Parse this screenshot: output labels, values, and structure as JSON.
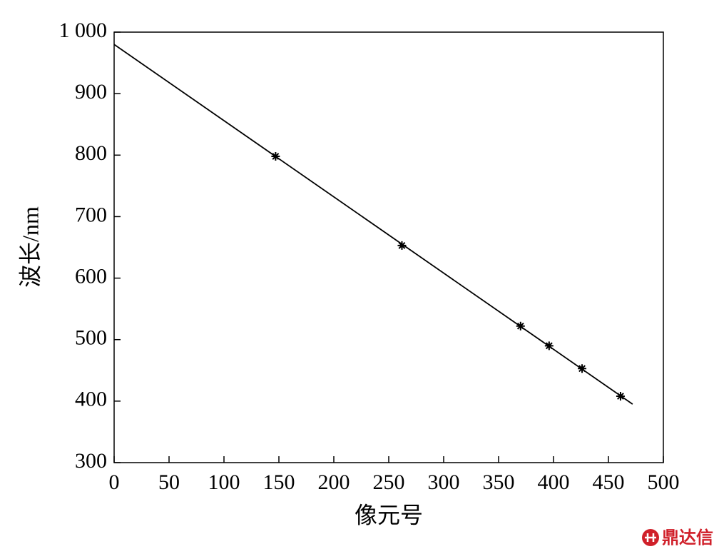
{
  "chart_data": {
    "type": "line",
    "xlabel": "像元号",
    "ylabel": "波长/nm",
    "xlim": [
      0,
      500
    ],
    "ylim": [
      300,
      1000
    ],
    "xticks": [
      0,
      50,
      100,
      150,
      200,
      250,
      300,
      350,
      400,
      450,
      500
    ],
    "yticks": [
      300,
      400,
      500,
      600,
      700,
      800,
      900,
      {
        "value": 1000,
        "label": "1 000"
      }
    ],
    "series": [
      {
        "type": "line",
        "color": "#000000",
        "x": [
          0,
          472
        ],
        "values": [
          980,
          395
        ]
      },
      {
        "type": "scatter",
        "marker": "asterisk",
        "color": "#000000",
        "x": [
          147,
          262,
          370,
          396,
          426,
          461
        ],
        "values": [
          798,
          653,
          522,
          490,
          453,
          408
        ]
      }
    ],
    "watermark": "鼎达信"
  }
}
